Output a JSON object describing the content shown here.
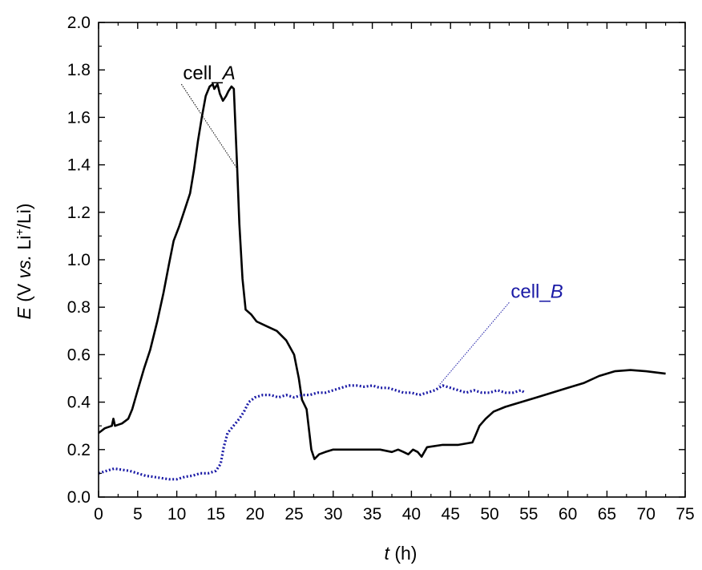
{
  "chart_data": {
    "type": "line",
    "xlabel": {
      "italic": "t",
      "rest": " (h)"
    },
    "ylabel": {
      "italic": "E",
      "rest_a": " (V ",
      "italic2": "vs.",
      "rest_b": " Li",
      "sup": "+",
      "rest_c": "/Li)"
    },
    "xlim": [
      0,
      75
    ],
    "ylim": [
      0,
      2.0
    ],
    "xticks": [
      "0",
      "5",
      "10",
      "15",
      "20",
      "25",
      "30",
      "35",
      "40",
      "45",
      "50",
      "55",
      "60",
      "65",
      "70",
      "75"
    ],
    "yticks": [
      "0.0",
      "0.2",
      "0.4",
      "0.6",
      "0.8",
      "1.0",
      "1.2",
      "1.4",
      "1.6",
      "1.8",
      "2.0"
    ],
    "grid": false,
    "series": [
      {
        "name": "cell_A",
        "label_main": "cell_",
        "label_italic": "A",
        "color": "#000000",
        "style": "solid",
        "label_at": [
          10.8,
          1.76
        ],
        "leader_to": [
          17.6,
          1.39
        ],
        "points": [
          [
            0,
            0.27
          ],
          [
            0.8,
            0.29
          ],
          [
            1.7,
            0.3
          ],
          [
            1.9,
            0.33
          ],
          [
            2.1,
            0.3
          ],
          [
            3,
            0.31
          ],
          [
            3.8,
            0.33
          ],
          [
            4.3,
            0.37
          ],
          [
            5,
            0.45
          ],
          [
            5.8,
            0.54
          ],
          [
            6.6,
            0.62
          ],
          [
            7.5,
            0.74
          ],
          [
            8.3,
            0.86
          ],
          [
            9,
            0.98
          ],
          [
            9.6,
            1.08
          ],
          [
            10.3,
            1.14
          ],
          [
            11,
            1.21
          ],
          [
            11.7,
            1.28
          ],
          [
            12.2,
            1.38
          ],
          [
            12.7,
            1.5
          ],
          [
            13.2,
            1.6
          ],
          [
            13.7,
            1.69
          ],
          [
            14.2,
            1.73
          ],
          [
            14.6,
            1.74
          ],
          [
            14.8,
            1.72
          ],
          [
            15.2,
            1.74
          ],
          [
            15.5,
            1.7
          ],
          [
            15.9,
            1.67
          ],
          [
            16.3,
            1.69
          ],
          [
            16.6,
            1.71
          ],
          [
            17.0,
            1.73
          ],
          [
            17.3,
            1.72
          ],
          [
            17.7,
            1.4
          ],
          [
            18.0,
            1.15
          ],
          [
            18.4,
            0.92
          ],
          [
            18.8,
            0.79
          ],
          [
            19.5,
            0.77
          ],
          [
            20.2,
            0.74
          ],
          [
            21.5,
            0.72
          ],
          [
            22.8,
            0.7
          ],
          [
            24,
            0.66
          ],
          [
            25,
            0.6
          ],
          [
            25.6,
            0.5
          ],
          [
            26,
            0.41
          ],
          [
            26.6,
            0.37
          ],
          [
            27.2,
            0.2
          ],
          [
            27.6,
            0.16
          ],
          [
            28.2,
            0.18
          ],
          [
            29,
            0.19
          ],
          [
            30,
            0.2
          ],
          [
            32,
            0.2
          ],
          [
            34,
            0.2
          ],
          [
            36,
            0.2
          ],
          [
            37.5,
            0.19
          ],
          [
            38.3,
            0.2
          ],
          [
            39,
            0.19
          ],
          [
            39.6,
            0.18
          ],
          [
            40.2,
            0.2
          ],
          [
            40.8,
            0.19
          ],
          [
            41.3,
            0.17
          ],
          [
            42,
            0.21
          ],
          [
            44,
            0.22
          ],
          [
            46,
            0.22
          ],
          [
            47.8,
            0.23
          ],
          [
            48.2,
            0.26
          ],
          [
            48.7,
            0.3
          ],
          [
            49.5,
            0.33
          ],
          [
            50.5,
            0.36
          ],
          [
            52,
            0.38
          ],
          [
            54,
            0.4
          ],
          [
            56,
            0.42
          ],
          [
            58,
            0.44
          ],
          [
            60,
            0.46
          ],
          [
            62,
            0.48
          ],
          [
            64,
            0.51
          ],
          [
            66,
            0.53
          ],
          [
            68,
            0.535
          ],
          [
            70,
            0.53
          ],
          [
            72.5,
            0.52
          ]
        ]
      },
      {
        "name": "cell_B",
        "label_main": "cell_",
        "label_italic": "B",
        "color": "#1a1aa6",
        "style": "dotted",
        "label_at": [
          52.7,
          0.84
        ],
        "leader_to": [
          43.5,
          0.47
        ],
        "points": [
          [
            0,
            0.1
          ],
          [
            1,
            0.11
          ],
          [
            2,
            0.12
          ],
          [
            3,
            0.115
          ],
          [
            4,
            0.11
          ],
          [
            5,
            0.1
          ],
          [
            6,
            0.09
          ],
          [
            7,
            0.085
          ],
          [
            8,
            0.08
          ],
          [
            9,
            0.075
          ],
          [
            10,
            0.075
          ],
          [
            11,
            0.085
          ],
          [
            12,
            0.09
          ],
          [
            13,
            0.1
          ],
          [
            14,
            0.1
          ],
          [
            15,
            0.11
          ],
          [
            15.6,
            0.14
          ],
          [
            16,
            0.21
          ],
          [
            16.5,
            0.27
          ],
          [
            17,
            0.29
          ],
          [
            17.5,
            0.31
          ],
          [
            18,
            0.33
          ],
          [
            18.6,
            0.36
          ],
          [
            19.2,
            0.4
          ],
          [
            20,
            0.42
          ],
          [
            21,
            0.43
          ],
          [
            22,
            0.43
          ],
          [
            23,
            0.42
          ],
          [
            24,
            0.43
          ],
          [
            25,
            0.42
          ],
          [
            26,
            0.43
          ],
          [
            27,
            0.43
          ],
          [
            28,
            0.44
          ],
          [
            29,
            0.44
          ],
          [
            30,
            0.45
          ],
          [
            31,
            0.46
          ],
          [
            32,
            0.47
          ],
          [
            33,
            0.47
          ],
          [
            34,
            0.465
          ],
          [
            35,
            0.47
          ],
          [
            36,
            0.46
          ],
          [
            37,
            0.46
          ],
          [
            38,
            0.45
          ],
          [
            39,
            0.44
          ],
          [
            40,
            0.44
          ],
          [
            41,
            0.43
          ],
          [
            42,
            0.44
          ],
          [
            43,
            0.45
          ],
          [
            44,
            0.47
          ],
          [
            45,
            0.46
          ],
          [
            46,
            0.45
          ],
          [
            47,
            0.44
          ],
          [
            48,
            0.45
          ],
          [
            49,
            0.44
          ],
          [
            50,
            0.44
          ],
          [
            51,
            0.45
          ],
          [
            52,
            0.44
          ],
          [
            53,
            0.44
          ],
          [
            54,
            0.45
          ],
          [
            54.5,
            0.44
          ]
        ]
      }
    ]
  }
}
